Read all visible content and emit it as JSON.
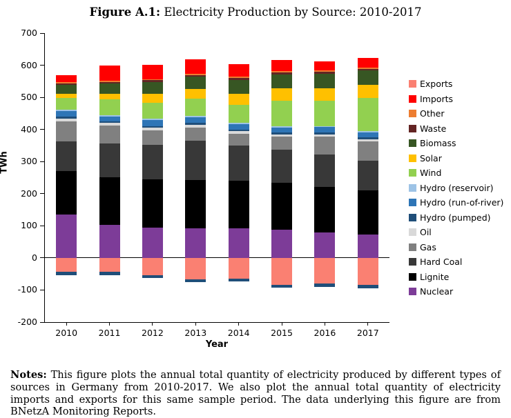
{
  "title": {
    "label": "Figure A.1:",
    "text": "Electricity Production by Source: 2010-2017"
  },
  "notes": {
    "label": "Notes:",
    "text": "This figure plots the annual total quantity of electricity produced by different types of sources in Germany from 2010-2017. We also plot the annual total quantity of electricity imports and exports for this same sample period. The data underlying this figure are from BNetzA Monitoring Reports."
  },
  "chart_data": {
    "type": "bar",
    "variant": "stacked",
    "title": "Electricity Production by Source: 2010-2017",
    "x": [
      "2010",
      "2011",
      "2012",
      "2013",
      "2014",
      "2015",
      "2016",
      "2017"
    ],
    "xlabel": "Year",
    "ylabel": "TWh",
    "ylim": [
      -200,
      700
    ],
    "ytick_step": 100,
    "grid": false,
    "legend_position": "right",
    "series": [
      {
        "name": "Nuclear",
        "color": "#7D3C98",
        "values": [
          135,
          102,
          95,
          92,
          92,
          87,
          80,
          72
        ]
      },
      {
        "name": "Lignite",
        "color": "#000000",
        "values": [
          136,
          150,
          150,
          151,
          148,
          147,
          140,
          138
        ]
      },
      {
        "name": "Hard Coal",
        "color": "#383838",
        "values": [
          92,
          105,
          106,
          121,
          109,
          104,
          102,
          93
        ]
      },
      {
        "name": "Gas",
        "color": "#808080",
        "values": [
          62,
          55,
          46,
          42,
          38,
          40,
          55,
          60
        ]
      },
      {
        "name": "Oil",
        "color": "#D9D9D9",
        "values": [
          9,
          8,
          8,
          8,
          7,
          7,
          7,
          6
        ]
      },
      {
        "name": "Hydro (pumped)",
        "color": "#1F4E79",
        "values": [
          6,
          6,
          6,
          6,
          6,
          6,
          6,
          6
        ]
      },
      {
        "name": "Hydro (run-of-river)",
        "color": "#2E75B6",
        "values": [
          17,
          14,
          18,
          19,
          16,
          15,
          17,
          16
        ]
      },
      {
        "name": "Hydro (reservoir)",
        "color": "#9DC3E6",
        "values": [
          4,
          4,
          4,
          4,
          4,
          4,
          4,
          4
        ]
      },
      {
        "name": "Wind",
        "color": "#92D050",
        "values": [
          38,
          49,
          51,
          52,
          57,
          80,
          79,
          104
        ]
      },
      {
        "name": "Solar",
        "color": "#FFC000",
        "values": [
          12,
          19,
          26,
          30,
          35,
          38,
          38,
          39
        ]
      },
      {
        "name": "Biomass",
        "color": "#375623",
        "values": [
          28,
          31,
          38,
          40,
          42,
          44,
          45,
          45
        ]
      },
      {
        "name": "Waste",
        "color": "#632423",
        "values": [
          5,
          5,
          5,
          5,
          6,
          6,
          6,
          6
        ]
      },
      {
        "name": "Other",
        "color": "#ED7D31",
        "values": [
          4,
          4,
          4,
          4,
          4,
          4,
          4,
          4
        ]
      },
      {
        "name": "Imports",
        "color": "#FF0000",
        "values": [
          20,
          48,
          44,
          44,
          40,
          35,
          30,
          30
        ]
      }
    ],
    "negative_series": [
      {
        "name": "Exports",
        "color": "#FA8072",
        "values": [
          -44,
          -44,
          -54,
          -66,
          -64,
          -83,
          -80,
          -84
        ]
      },
      {
        "name": "Hydro (pumped)",
        "color": "#1F4E79",
        "values": [
          -10,
          -9,
          -9,
          -10,
          -9,
          -10,
          -10,
          -10
        ]
      }
    ],
    "legend_order": [
      "Exports",
      "Imports",
      "Other",
      "Waste",
      "Biomass",
      "Solar",
      "Wind",
      "Hydro (reservoir)",
      "Hydro (run-of-river)",
      "Hydro (pumped)",
      "Oil",
      "Gas",
      "Hard Coal",
      "Lignite",
      "Nuclear"
    ]
  }
}
